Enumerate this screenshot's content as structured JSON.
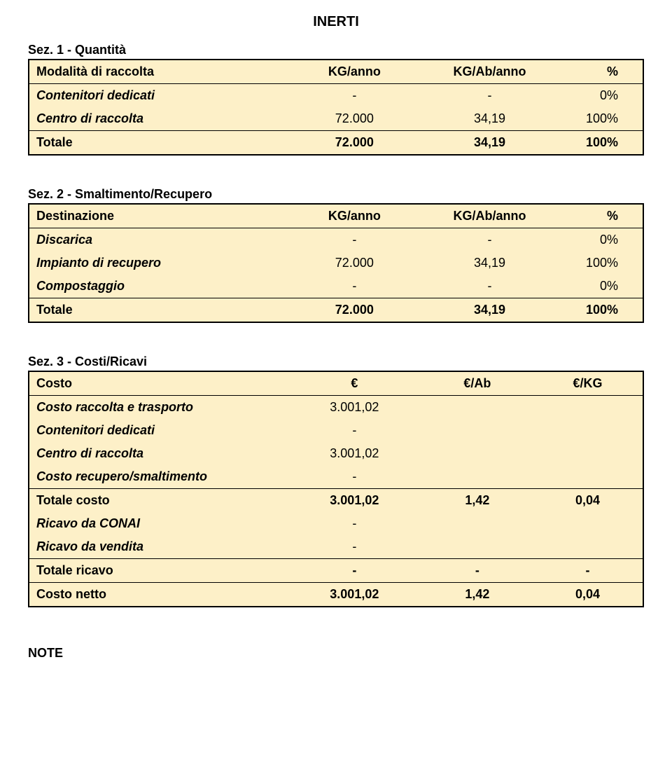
{
  "doc_title": "INERTI",
  "colors": {
    "table_bg": "#fdf0c8",
    "border": "#000000",
    "text": "#000000",
    "page_bg": "#ffffff"
  },
  "sec1": {
    "title": "Sez. 1 - Quantità",
    "headers": [
      "Modalità di raccolta",
      "KG/anno",
      "KG/Ab/anno",
      "%"
    ],
    "rows": [
      {
        "label": "Contenitori dedicati",
        "v1": "-",
        "v2": "-",
        "v3": "0%"
      },
      {
        "label": "Centro di raccolta",
        "v1": "72.000",
        "v2": "34,19",
        "v3": "100%"
      }
    ],
    "total": {
      "label": "Totale",
      "v1": "72.000",
      "v2": "34,19",
      "v3": "100%"
    }
  },
  "sec2": {
    "title": "Sez. 2 - Smaltimento/Recupero",
    "headers": [
      "Destinazione",
      "KG/anno",
      "KG/Ab/anno",
      "%"
    ],
    "rows": [
      {
        "label": "Discarica",
        "v1": "-",
        "v2": "-",
        "v3": "0%"
      },
      {
        "label": "Impianto di recupero",
        "v1": "72.000",
        "v2": "34,19",
        "v3": "100%"
      },
      {
        "label": "Compostaggio",
        "v1": "-",
        "v2": "-",
        "v3": "0%"
      }
    ],
    "total": {
      "label": "Totale",
      "v1": "72.000",
      "v2": "34,19",
      "v3": "100%"
    }
  },
  "sec3": {
    "title": "Sez. 3 - Costi/Ricavi",
    "headers": [
      "Costo",
      "€",
      "€/Ab",
      "€/KG"
    ],
    "rows_cost": [
      {
        "label": "Costo raccolta e trasporto",
        "v1": "3.001,02",
        "v2": "",
        "v3": ""
      },
      {
        "label": "Contenitori dedicati",
        "v1": "-",
        "v2": "",
        "v3": ""
      },
      {
        "label": "Centro di raccolta",
        "v1": "3.001,02",
        "v2": "",
        "v3": ""
      },
      {
        "label": "Costo recupero/smaltimento",
        "v1": "-",
        "v2": "",
        "v3": ""
      }
    ],
    "total_cost": {
      "label": "Totale costo",
      "v1": "3.001,02",
      "v2": "1,42",
      "v3": "0,04"
    },
    "rows_ric": [
      {
        "label": "Ricavo da CONAI",
        "v1": "-",
        "v2": "",
        "v3": ""
      },
      {
        "label": "Ricavo da vendita",
        "v1": "-",
        "v2": "",
        "v3": ""
      }
    ],
    "total_ric": {
      "label": "Totale ricavo",
      "v1": "-",
      "v2": "-",
      "v3": "-"
    },
    "netto": {
      "label": "Costo netto",
      "v1": "3.001,02",
      "v2": "1,42",
      "v3": "0,04"
    }
  },
  "note_label": "NOTE"
}
